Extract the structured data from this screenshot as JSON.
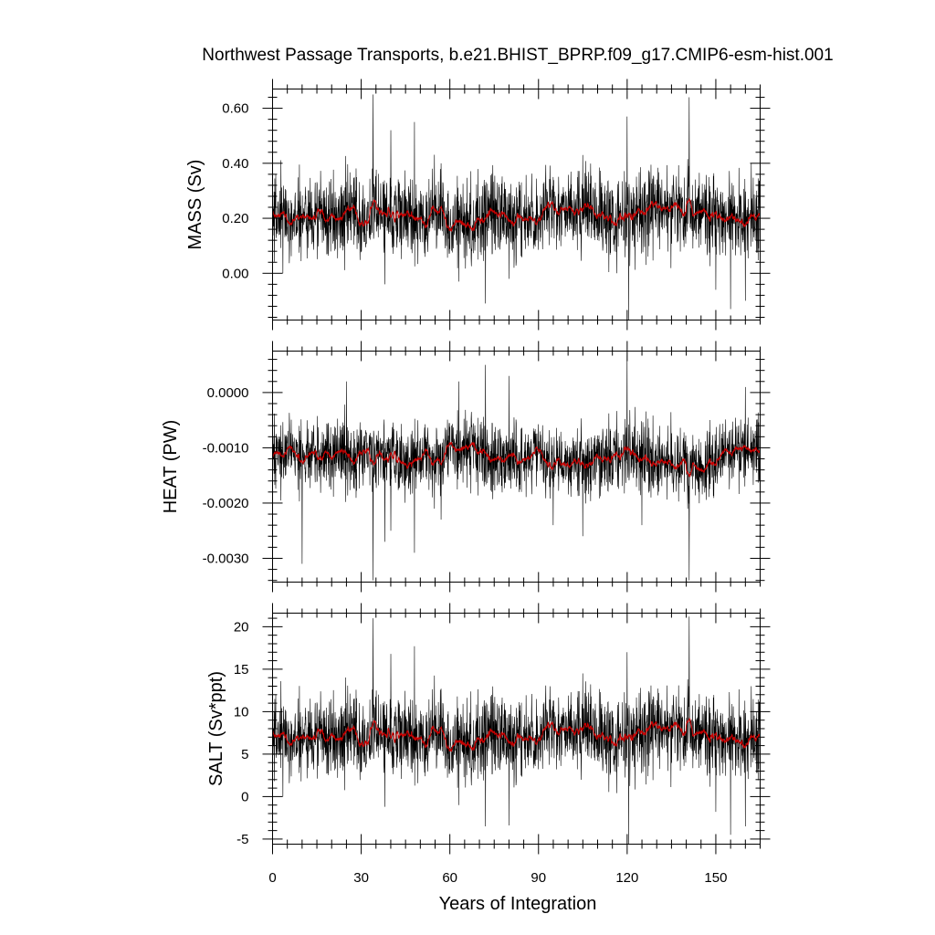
{
  "chart_data": {
    "title": "Northwest Passage Transports, b.e21.BHIST_BPRP.f09_g17.CMIP6-esm-hist.001",
    "type": "line",
    "xlabel": "Years of Integration",
    "xlim": [
      0,
      165
    ],
    "xticks": [
      0,
      30,
      60,
      90,
      120,
      150
    ],
    "xtick_labels": [
      "0",
      "30",
      "60",
      "90",
      "120",
      "150"
    ],
    "raw_color": "#000000",
    "smooth_color": "#cc0000",
    "panels": [
      {
        "name": "MASS",
        "ylabel": "MASS (Sv)",
        "ylim": [
          -0.17,
          0.67
        ],
        "yticks": [
          0.0,
          0.2,
          0.4,
          0.6
        ],
        "ytick_labels": [
          "0.00",
          "0.20",
          "0.40",
          "0.60"
        ],
        "ticks_every": 0.04,
        "mean": 0.2,
        "anchors": [
          [
            0,
            0.21
          ],
          [
            5,
            0.2
          ],
          [
            10,
            0.21
          ],
          [
            15,
            0.21
          ],
          [
            20,
            0.2
          ],
          [
            25,
            0.21
          ],
          [
            30,
            0.2
          ],
          [
            35,
            0.23
          ],
          [
            40,
            0.22
          ],
          [
            45,
            0.21
          ],
          [
            50,
            0.2
          ],
          [
            55,
            0.22
          ],
          [
            60,
            0.2
          ],
          [
            65,
            0.19
          ],
          [
            70,
            0.2
          ],
          [
            75,
            0.21
          ],
          [
            80,
            0.2
          ],
          [
            85,
            0.2
          ],
          [
            90,
            0.21
          ],
          [
            95,
            0.22
          ],
          [
            100,
            0.23
          ],
          [
            105,
            0.23
          ],
          [
            110,
            0.22
          ],
          [
            115,
            0.19
          ],
          [
            120,
            0.21
          ],
          [
            125,
            0.22
          ],
          [
            130,
            0.23
          ],
          [
            135,
            0.24
          ],
          [
            140,
            0.23
          ],
          [
            145,
            0.22
          ],
          [
            150,
            0.19
          ],
          [
            155,
            0.2
          ],
          [
            160,
            0.19
          ],
          [
            165,
            0.2
          ]
        ],
        "amplitude": 0.075,
        "spikes": [
          [
            3.5,
            0.0
          ],
          [
            34,
            0.65
          ],
          [
            38,
            -0.04
          ],
          [
            40,
            0.52
          ],
          [
            48,
            0.55
          ],
          [
            57,
            0.4
          ],
          [
            63,
            -0.03
          ],
          [
            72,
            -0.11
          ],
          [
            80,
            -0.02
          ],
          [
            95,
            0.35
          ],
          [
            105,
            0.43
          ],
          [
            120,
            0.57
          ],
          [
            120.5,
            -0.17
          ],
          [
            141,
            0.64
          ],
          [
            150,
            -0.06
          ],
          [
            155,
            -0.13
          ],
          [
            160,
            -0.1
          ],
          [
            162,
            0.4
          ]
        ]
      },
      {
        "name": "HEAT",
        "ylabel": "HEAT (PW)",
        "ylim": [
          -0.00343,
          0.00075
        ],
        "yticks": [
          0.0,
          -0.001,
          -0.002,
          -0.003
        ],
        "ytick_labels": [
          "0.0000",
          "-0.0010",
          "-0.0020",
          "-0.0030"
        ],
        "ticks_every": 0.0002,
        "mean": -0.0011,
        "anchors": [
          [
            0,
            -0.0011
          ],
          [
            5,
            -0.00105
          ],
          [
            10,
            -0.0012
          ],
          [
            15,
            -0.0011
          ],
          [
            20,
            -0.00115
          ],
          [
            25,
            -0.00105
          ],
          [
            30,
            -0.0012
          ],
          [
            35,
            -0.0011
          ],
          [
            40,
            -0.00115
          ],
          [
            45,
            -0.0013
          ],
          [
            50,
            -0.0012
          ],
          [
            55,
            -0.0012
          ],
          [
            60,
            -0.0011
          ],
          [
            65,
            -0.00105
          ],
          [
            70,
            -0.0011
          ],
          [
            75,
            -0.00115
          ],
          [
            80,
            -0.0012
          ],
          [
            85,
            -0.00125
          ],
          [
            90,
            -0.0011
          ],
          [
            95,
            -0.0012
          ],
          [
            100,
            -0.0013
          ],
          [
            105,
            -0.00125
          ],
          [
            110,
            -0.0012
          ],
          [
            115,
            -0.0012
          ],
          [
            120,
            -0.0011
          ],
          [
            125,
            -0.00115
          ],
          [
            130,
            -0.0012
          ],
          [
            135,
            -0.0013
          ],
          [
            140,
            -0.0013
          ],
          [
            145,
            -0.0014
          ],
          [
            150,
            -0.00115
          ],
          [
            155,
            -0.001
          ],
          [
            160,
            -0.00105
          ],
          [
            165,
            -0.001
          ]
        ],
        "amplitude": 0.00032,
        "spikes": [
          [
            10,
            -0.0031
          ],
          [
            25,
            0.0002
          ],
          [
            34,
            -0.0034
          ],
          [
            38,
            -0.0027
          ],
          [
            40,
            -0.0025
          ],
          [
            48,
            -0.0029
          ],
          [
            57,
            -0.0023
          ],
          [
            63,
            0.0002
          ],
          [
            72,
            0.0005
          ],
          [
            80,
            0.0003
          ],
          [
            95,
            -0.0024
          ],
          [
            105,
            -0.0026
          ],
          [
            120,
            0.00075
          ],
          [
            125,
            -0.0024
          ],
          [
            141,
            -0.0034
          ],
          [
            160,
            0.0001
          ]
        ]
      },
      {
        "name": "SALT",
        "ylabel": "SALT (Sv*ppt)",
        "ylim": [
          -5.6,
          21.6
        ],
        "yticks": [
          -5,
          0,
          5,
          10,
          15,
          20
        ],
        "ytick_labels": [
          "-5",
          "0",
          "5",
          "10",
          "15",
          "20"
        ],
        "ticks_every": 1,
        "mean": 7,
        "anchors": [
          [
            0,
            7.2
          ],
          [
            5,
            6.8
          ],
          [
            10,
            7.1
          ],
          [
            15,
            7.2
          ],
          [
            20,
            6.9
          ],
          [
            25,
            7.1
          ],
          [
            30,
            6.8
          ],
          [
            35,
            7.8
          ],
          [
            40,
            7.4
          ],
          [
            45,
            7.2
          ],
          [
            50,
            6.9
          ],
          [
            55,
            7.5
          ],
          [
            60,
            6.8
          ],
          [
            65,
            6.6
          ],
          [
            70,
            6.9
          ],
          [
            75,
            7.1
          ],
          [
            80,
            6.8
          ],
          [
            85,
            6.9
          ],
          [
            90,
            7.2
          ],
          [
            95,
            7.5
          ],
          [
            100,
            7.8
          ],
          [
            105,
            7.9
          ],
          [
            110,
            7.4
          ],
          [
            115,
            6.5
          ],
          [
            120,
            7.1
          ],
          [
            125,
            7.5
          ],
          [
            130,
            7.8
          ],
          [
            135,
            8.2
          ],
          [
            140,
            7.9
          ],
          [
            145,
            7.4
          ],
          [
            150,
            6.4
          ],
          [
            155,
            6.8
          ],
          [
            160,
            6.4
          ],
          [
            165,
            6.8
          ]
        ],
        "amplitude": 2.4,
        "spikes": [
          [
            3.5,
            0.0
          ],
          [
            34,
            21
          ],
          [
            38,
            -1.2
          ],
          [
            40,
            16.8
          ],
          [
            48,
            17.7
          ],
          [
            57,
            12.7
          ],
          [
            63,
            -1.0
          ],
          [
            72,
            -3.5
          ],
          [
            80,
            -3.4
          ],
          [
            95,
            11.3
          ],
          [
            105,
            14.5
          ],
          [
            120,
            17.0
          ],
          [
            120.5,
            -5.6
          ],
          [
            141,
            21.2
          ],
          [
            150,
            -1.8
          ],
          [
            155,
            -4.5
          ],
          [
            160,
            -3.5
          ],
          [
            162,
            13
          ]
        ]
      }
    ]
  }
}
